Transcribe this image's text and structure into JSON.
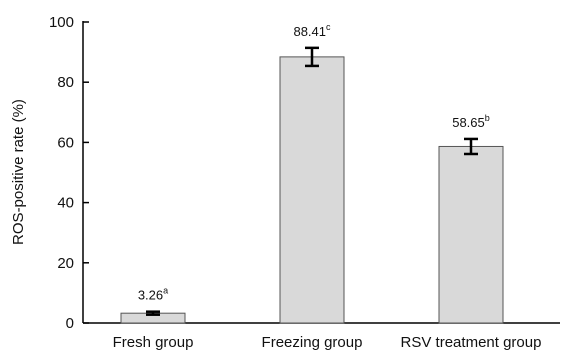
{
  "chart_data": {
    "type": "bar",
    "title": "",
    "xlabel": "",
    "ylabel": "ROS-positive rate (%)",
    "ylim": [
      0,
      100
    ],
    "yticks": [
      0,
      20,
      40,
      60,
      80,
      100
    ],
    "categories": [
      "Fresh group",
      "Freezing group",
      "RSV treatment group"
    ],
    "values": [
      3.26,
      88.41,
      58.65
    ],
    "error": [
      0.5,
      3,
      2.5
    ],
    "value_labels": [
      "3.26",
      "88.41",
      "58.65"
    ],
    "superscripts": [
      "a",
      "c",
      "b"
    ],
    "bar_color": "#d9d9d9",
    "bar_edge_color": "#555555",
    "grid": false,
    "legend": "none"
  }
}
